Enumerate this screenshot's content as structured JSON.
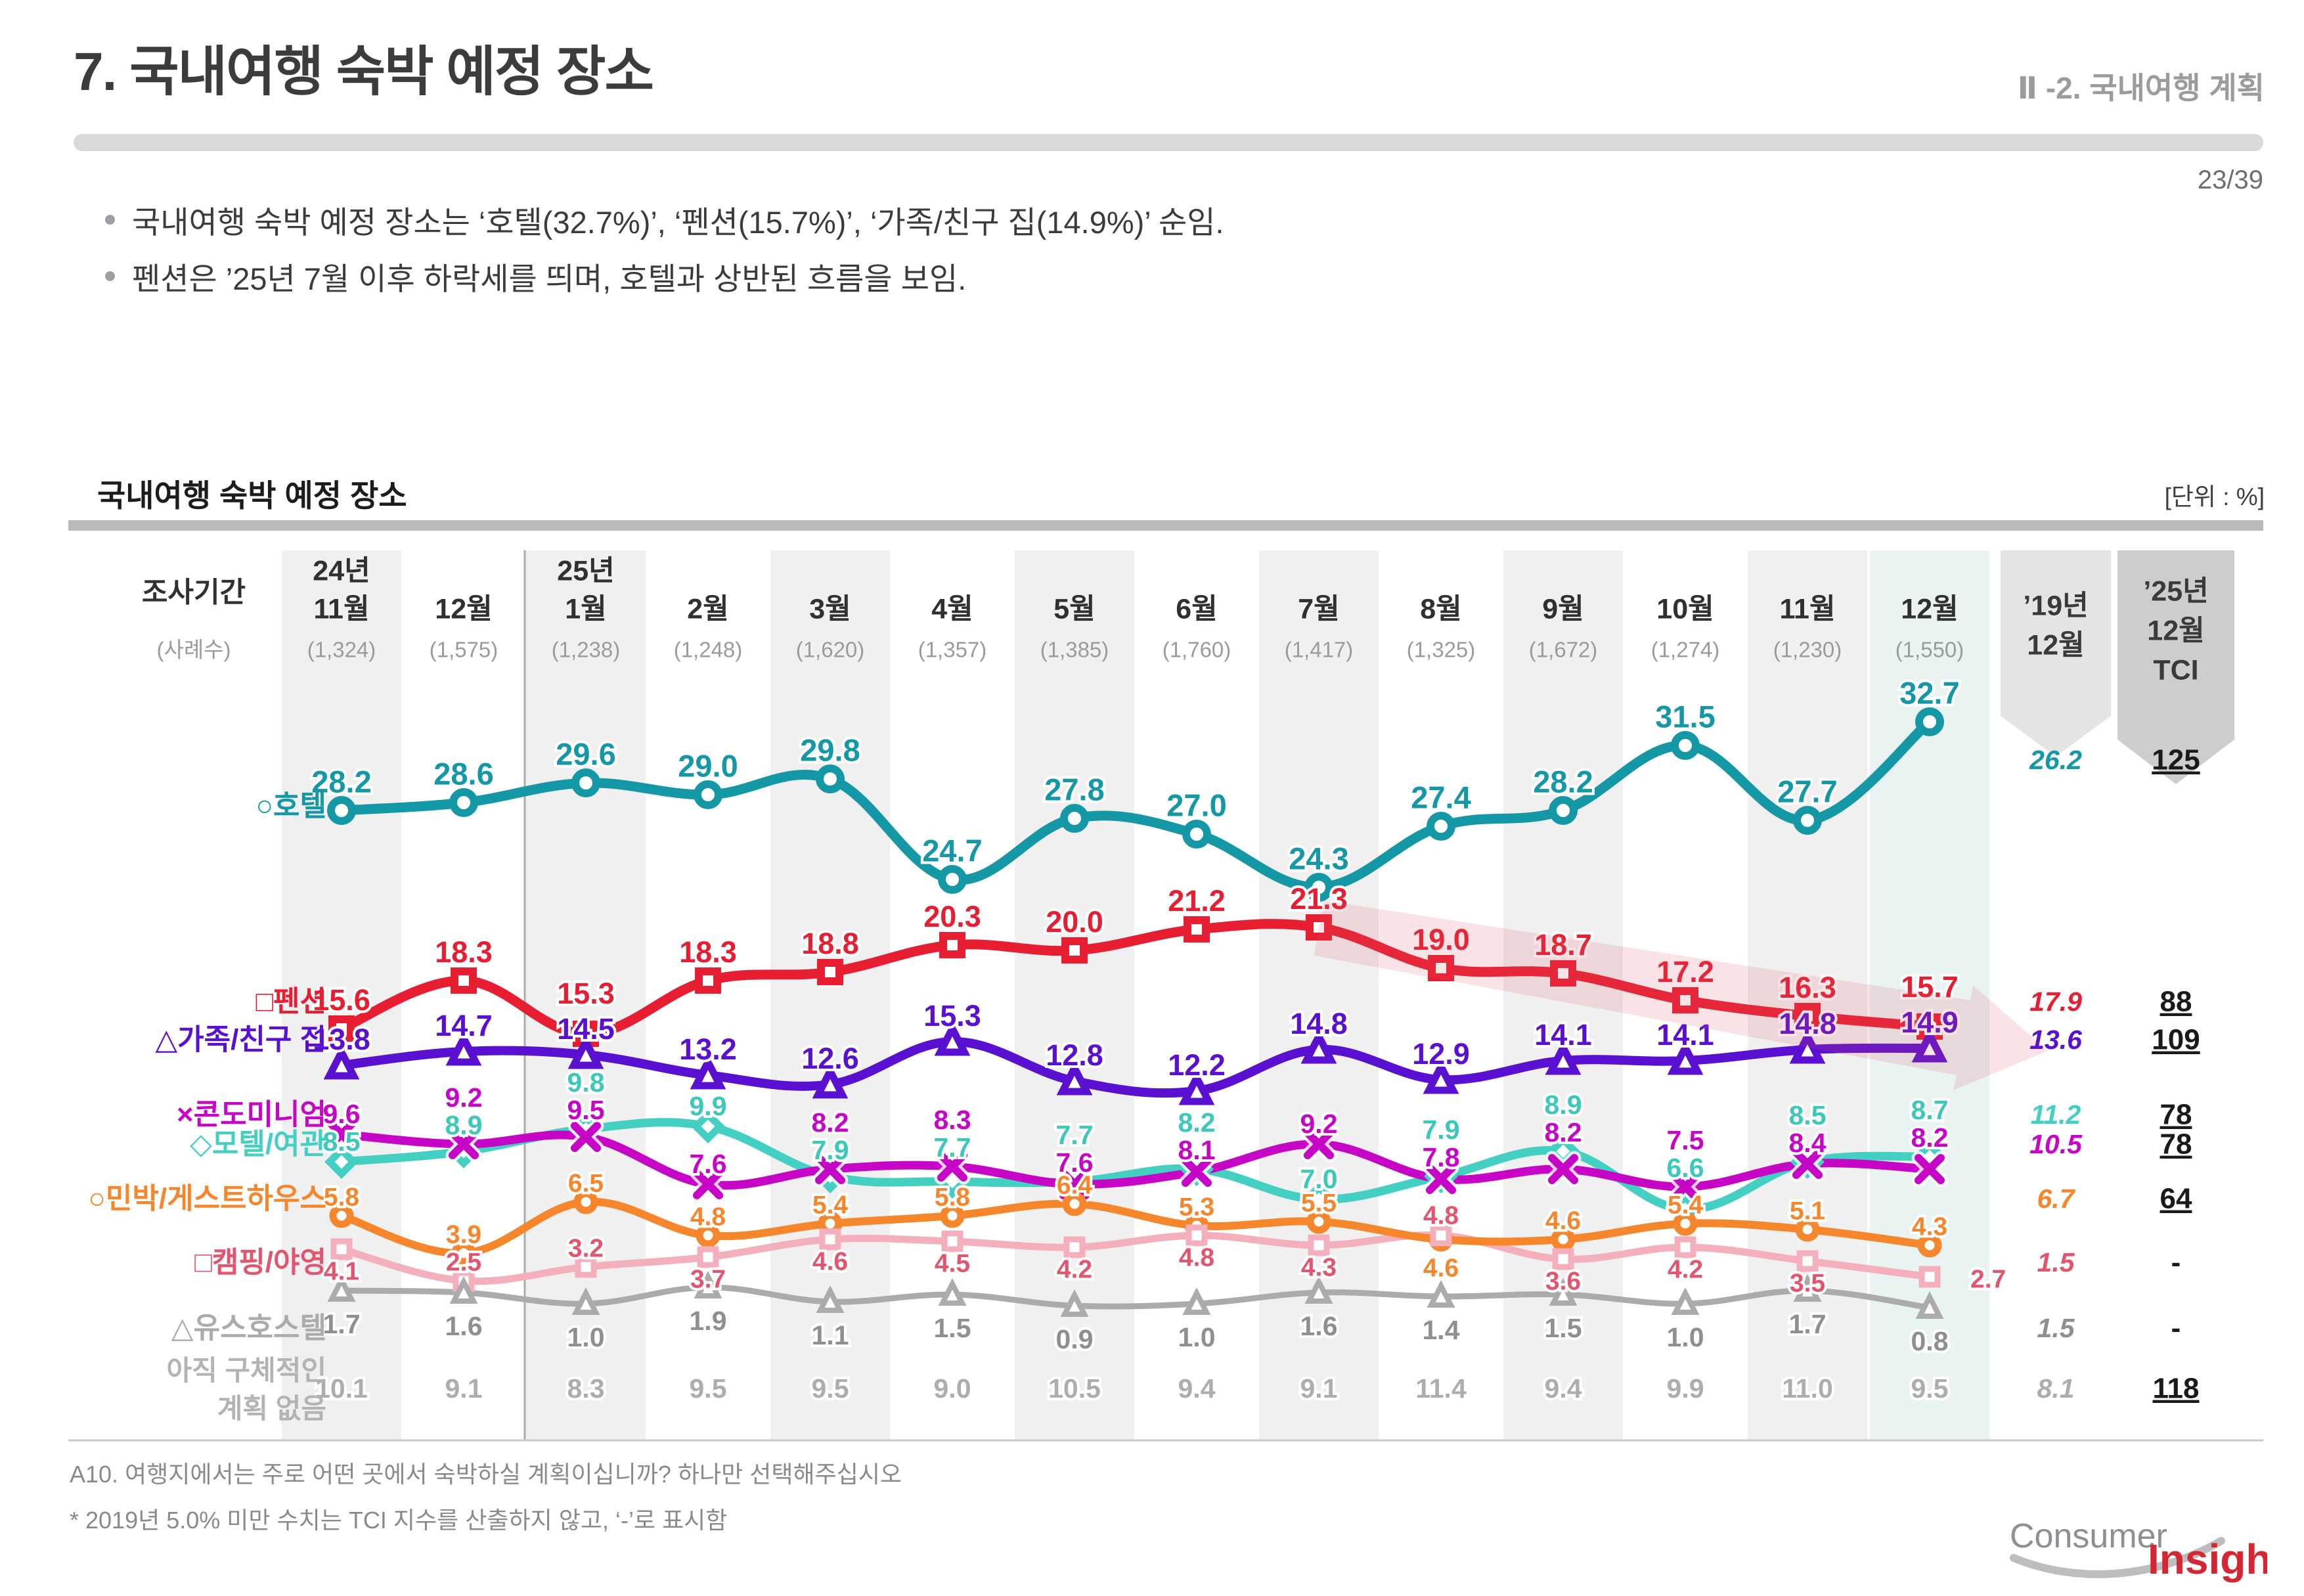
{
  "header": {
    "title": "7. 국내여행 숙박 예정 장소",
    "section": "Ⅱ -2. 국내여행 계획",
    "page_number": "23/39",
    "bullets": [
      "국내여행 숙박 예정 장소는 ‘호텔(32.7%)’, ‘펜션(15.7%)’, ‘가족/친구 집(14.9%)’ 순임.",
      "펜션은 ’25년 7월 이후 하락세를 띄며, 호텔과 상반된 흐름을 보임."
    ]
  },
  "chart": {
    "title": "국내여행 숙박 예정 장소",
    "unit_label": "[단위 : %]",
    "row_header": {
      "period": "조사기간",
      "cases": "(사례수)"
    }
  },
  "chart_data": {
    "type": "line",
    "unit": "%",
    "categories": [
      "24년|11월",
      "12월",
      "25년|1월",
      "2월",
      "3월",
      "4월",
      "5월",
      "6월",
      "7월",
      "8월",
      "9월",
      "10월",
      "11월",
      "12월"
    ],
    "sample_sizes": [
      "(1,324)",
      "(1,575)",
      "(1,238)",
      "(1,248)",
      "(1,620)",
      "(1,357)",
      "(1,385)",
      "(1,760)",
      "(1,417)",
      "(1,325)",
      "(1,672)",
      "(1,274)",
      "(1,230)",
      "(1,550)"
    ],
    "extra_columns": [
      {
        "label": "’19년|12월"
      },
      {
        "label": "’25년|12월|TCI"
      }
    ],
    "series": [
      {
        "id": "hotel",
        "name": "호텔",
        "symbol": "○",
        "color": "#1598a5",
        "text_color": "#1598a5",
        "values": [
          28.2,
          28.6,
          29.6,
          29.0,
          29.8,
          24.7,
          27.8,
          27.0,
          24.3,
          27.4,
          28.2,
          31.5,
          27.7,
          32.7
        ],
        "dec2019": "26.2",
        "tci": "125"
      },
      {
        "id": "pension",
        "name": "펜션",
        "symbol": "□",
        "color": "#e71e32",
        "text_color": "#e71e32",
        "values": [
          15.6,
          18.3,
          15.3,
          18.3,
          18.8,
          20.3,
          20.0,
          21.2,
          21.3,
          19.0,
          18.7,
          17.2,
          16.3,
          15.7
        ],
        "dec2019": "17.9",
        "tci": "88"
      },
      {
        "id": "family",
        "name": "가족/친구 집",
        "symbol": "△",
        "color": "#5a10d0",
        "text_color": "#5a10d0",
        "values": [
          13.8,
          14.7,
          14.5,
          13.2,
          12.6,
          15.3,
          12.8,
          12.2,
          14.8,
          12.9,
          14.1,
          14.1,
          14.8,
          14.9
        ],
        "dec2019": "13.6",
        "tci": "109"
      },
      {
        "id": "condo",
        "name": "콘도미니엄",
        "symbol": "×",
        "color": "#c605c6",
        "text_color": "#c605c6",
        "values": [
          9.6,
          9.2,
          9.5,
          7.6,
          8.2,
          8.3,
          7.6,
          8.1,
          9.2,
          7.8,
          8.2,
          7.5,
          8.4,
          8.2
        ],
        "dec2019": "10.5",
        "tci": "78"
      },
      {
        "id": "motel",
        "name": "모텔/여관",
        "symbol": "◇",
        "color": "#43cfc1",
        "text_color": "#3cc9ba",
        "values": [
          8.5,
          8.9,
          9.8,
          9.9,
          7.9,
          7.7,
          7.7,
          8.2,
          7.0,
          7.9,
          8.9,
          6.6,
          8.5,
          8.7
        ],
        "dec2019": "11.2",
        "tci": "78"
      },
      {
        "id": "minbak",
        "name": "민박/게스트하우스",
        "symbol": "○",
        "color": "#f6862b",
        "text_color": "#f6862b",
        "values": [
          5.8,
          3.9,
          6.5,
          4.8,
          5.4,
          5.8,
          6.4,
          5.3,
          5.5,
          4.6,
          4.6,
          5.4,
          5.1,
          4.3
        ],
        "dec2019": "6.7",
        "tci": "64"
      },
      {
        "id": "camping",
        "name": "캠핑/야영",
        "symbol": "□",
        "color": "#f4afbc",
        "text_color": "#e2556e",
        "values": [
          4.1,
          2.5,
          3.2,
          3.7,
          4.6,
          4.5,
          4.2,
          4.8,
          4.3,
          4.8,
          3.6,
          4.2,
          3.5,
          2.7
        ],
        "dec2019": "1.5",
        "tci": "-"
      },
      {
        "id": "youth",
        "name": "유스호스텔",
        "symbol": "△",
        "color": "#ababab",
        "text_color": "#8f8f8f",
        "values": [
          1.7,
          1.6,
          1.0,
          1.9,
          1.1,
          1.5,
          0.9,
          1.0,
          1.6,
          1.4,
          1.5,
          1.0,
          1.7,
          0.8
        ],
        "dec2019": "1.5",
        "tci": "-"
      },
      {
        "id": "noplan",
        "name": "아직 구체적인|계획 없음",
        "symbol": "",
        "color": "#b5b5b5",
        "text_color": "#adadad",
        "values": [
          10.1,
          9.1,
          8.3,
          9.5,
          9.5,
          9.0,
          10.5,
          9.4,
          9.1,
          11.4,
          9.4,
          9.9,
          11.0,
          9.5
        ],
        "dec2019": "8.1",
        "tci": "118"
      }
    ],
    "annotations": [
      "pension-decline-arrow"
    ]
  },
  "footer": {
    "question": "A10. 여행지에서는 주로 어떤 곳에서 숙박하실 계획이십니까? 하나만 선택해주십시오",
    "note": "* 2019년 5.0% 미만 수치는 TCI 지수를 산출하지 않고, ‘-’로 표시함",
    "logo": {
      "part1": "Consumer",
      "part2": "Insight"
    }
  }
}
